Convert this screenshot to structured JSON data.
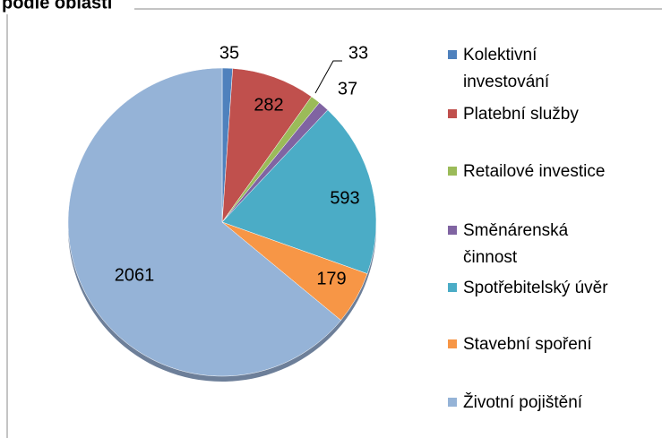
{
  "chart_data": {
    "type": "pie",
    "title": "podle oblasti",
    "categories": [
      "Kolektivní investování",
      "Platební služby",
      "Retailové investice",
      "Směnárenská činnost",
      "Spotřebitelský úvěr",
      "Stavební spoření",
      "Životní pojištění"
    ],
    "values": [
      35,
      282,
      33,
      37,
      593,
      179,
      2061
    ],
    "colors": [
      "#4f81bd",
      "#c0504d",
      "#9bbb59",
      "#8064a2",
      "#4bacc6",
      "#f79646",
      "#95b3d7"
    ],
    "legend": "right"
  }
}
